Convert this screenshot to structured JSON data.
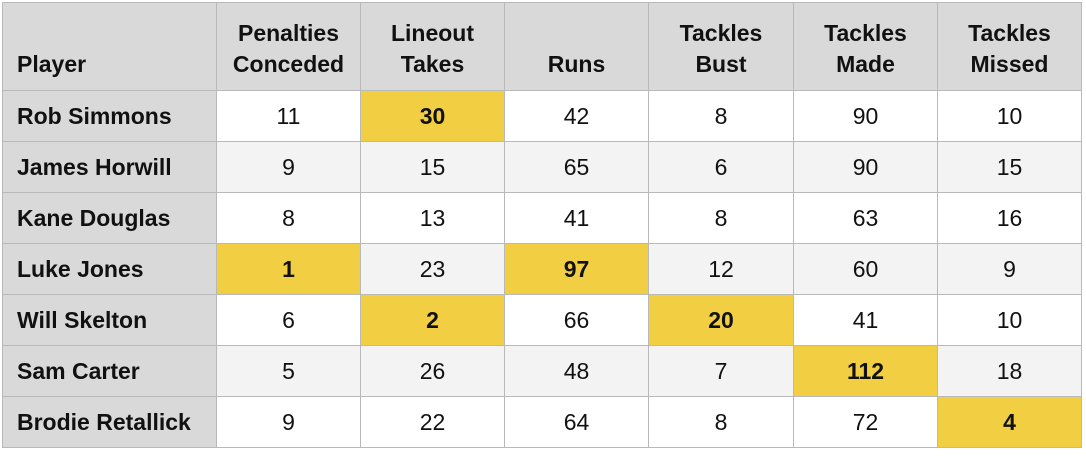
{
  "chart_data": {
    "type": "table",
    "columns": [
      "Player",
      "Penalties Conceded",
      "Lineout Takes",
      "Runs",
      "Tackles Bust",
      "Tackles Made",
      "Tackles Missed"
    ],
    "header_lines": [
      [
        "Player"
      ],
      [
        "Penalties",
        "Conceded"
      ],
      [
        "Lineout",
        "Takes"
      ],
      [
        "Runs"
      ],
      [
        "Tackles",
        "Bust"
      ],
      [
        "Tackles",
        "Made"
      ],
      [
        "Tackles",
        "Missed"
      ]
    ],
    "rows": [
      {
        "player": "Rob Simmons",
        "values": [
          11,
          30,
          42,
          8,
          90,
          10
        ],
        "highlight": [
          false,
          true,
          false,
          false,
          false,
          false
        ]
      },
      {
        "player": "James Horwill",
        "values": [
          9,
          15,
          65,
          6,
          90,
          15
        ],
        "highlight": [
          false,
          false,
          false,
          false,
          false,
          false
        ]
      },
      {
        "player": "Kane Douglas",
        "values": [
          8,
          13,
          41,
          8,
          63,
          16
        ],
        "highlight": [
          false,
          false,
          false,
          false,
          false,
          false
        ]
      },
      {
        "player": "Luke Jones",
        "values": [
          1,
          23,
          97,
          12,
          60,
          9
        ],
        "highlight": [
          true,
          false,
          true,
          false,
          false,
          false
        ]
      },
      {
        "player": "Will Skelton",
        "values": [
          6,
          2,
          66,
          20,
          41,
          10
        ],
        "highlight": [
          false,
          true,
          false,
          true,
          false,
          false
        ]
      },
      {
        "player": "Sam Carter",
        "values": [
          5,
          26,
          48,
          7,
          112,
          18
        ],
        "highlight": [
          false,
          false,
          false,
          false,
          true,
          false
        ]
      },
      {
        "player": "Brodie Retallick",
        "values": [
          9,
          22,
          64,
          8,
          72,
          4
        ],
        "highlight": [
          false,
          false,
          false,
          false,
          false,
          true
        ]
      }
    ]
  },
  "colors": {
    "header_bg": "#d9d9d9",
    "player_col_bg": "#d9d9d9",
    "row_odd_bg": "#ffffff",
    "row_even_bg": "#f3f3f3",
    "highlight_bg": "#f2cf42",
    "border": "#b9b9b9"
  }
}
